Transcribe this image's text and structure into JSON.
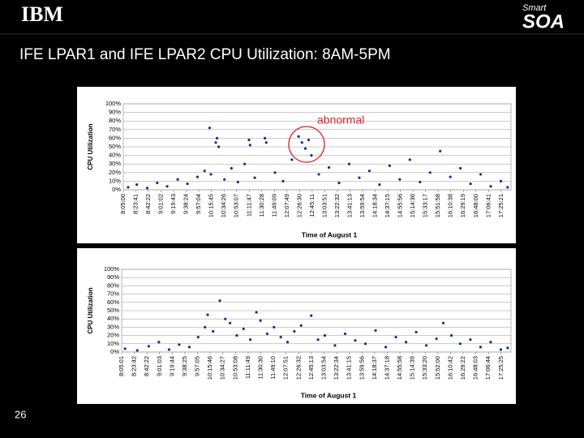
{
  "header": {
    "logo": "IBM",
    "brand_prefix": "Smart",
    "brand": "SOA"
  },
  "title": "IFE LPAR1 and IFE LPAR2 CPU Utilization: 8AM-5PM",
  "page_number": "26",
  "chart_data": [
    {
      "type": "scatter",
      "ylabel": "CPU Utilization",
      "xlabel": "Time of August 1",
      "annotation": "abnormal",
      "xlim": [
        "8:05:00",
        "17:40:00"
      ],
      "xticks": [
        "8:05:00",
        "8:23:41",
        "8:42:22",
        "9:01:02",
        "9:19:43",
        "9:38:24",
        "9:57:04",
        "10:15:45",
        "10:34:26",
        "10:53:07",
        "11:11:47",
        "11:30:28",
        "11:49:09",
        "12:07:49",
        "12:26:30",
        "12:45:11",
        "13:03:51",
        "13:22:32",
        "13:41:13",
        "13:59:54",
        "14:18:34",
        "14:37:15",
        "14:55:56",
        "15:14:36",
        "15:33:17",
        "15:51:58",
        "16:10:38",
        "16:29:19",
        "16:48:00",
        "17:06:41",
        "17:25:21"
      ],
      "ylim": [
        0,
        100
      ],
      "yticks": [
        {
          "value": 0,
          "label": "0%"
        },
        {
          "value": 10,
          "label": "10%"
        },
        {
          "value": 20,
          "label": "20%"
        },
        {
          "value": 30,
          "label": "30%"
        },
        {
          "value": 40,
          "label": "40%"
        },
        {
          "value": 50,
          "label": "50%"
        },
        {
          "value": 60,
          "label": "60%"
        },
        {
          "value": 70,
          "label": "70%"
        },
        {
          "value": 80,
          "label": "80%"
        },
        {
          "value": 90,
          "label": "90%"
        },
        {
          "value": 100,
          "label": "100%"
        }
      ],
      "grid": true,
      "series": [
        {
          "color": "#1c2a9c",
          "x": [
            "8:12:10",
            "8:25:00",
            "8:40:30",
            "8:55:20",
            "9:10:00",
            "9:25:40",
            "9:40:10",
            "9:55:00",
            "10:05:30",
            "10:13:00",
            "10:15:00",
            "10:22:10",
            "10:24:00",
            "10:26:30",
            "10:35:00",
            "10:45:20",
            "10:55:00",
            "11:05:00",
            "11:11:30",
            "11:13:00",
            "11:20:00",
            "11:35:00",
            "11:37:00",
            "11:50:00",
            "12:02:00",
            "12:15:00",
            "12:25:00",
            "12:30:00",
            "12:35:00",
            "12:40:00",
            "12:44:00",
            "12:55:00",
            "13:10:00",
            "13:25:00",
            "13:40:00",
            "13:55:00",
            "14:10:00",
            "14:25:00",
            "14:40:00",
            "14:55:00",
            "15:10:00",
            "15:25:00",
            "15:40:00",
            "15:55:00",
            "16:10:00",
            "16:25:00",
            "16:40:00",
            "16:55:00",
            "17:10:00",
            "17:25:00",
            "17:35:00"
          ],
          "values": [
            3,
            6,
            2,
            8,
            4,
            12,
            7,
            15,
            22,
            72,
            18,
            55,
            60,
            50,
            12,
            25,
            9,
            30,
            58,
            52,
            14,
            60,
            55,
            20,
            10,
            35,
            62,
            55,
            48,
            58,
            40,
            18,
            26,
            8,
            30,
            14,
            22,
            6,
            28,
            12,
            35,
            9,
            20,
            45,
            15,
            25,
            7,
            18,
            4,
            10,
            3
          ]
        }
      ]
    },
    {
      "type": "scatter",
      "ylabel": "CPU Utilization",
      "xlabel": "Time of August 1",
      "xlim": [
        "8:05:01",
        "17:40:00"
      ],
      "xticks": [
        "8:05:01",
        "8:23:42",
        "8:42:22",
        "9:01:03",
        "9:19:44",
        "9:38:25",
        "9:57:05",
        "10:15:46",
        "10:34:27",
        "10:53:08",
        "11:11:49",
        "11:30:30",
        "11:49:10",
        "12:07:51",
        "12:26:32",
        "12:45:13",
        "13:03:54",
        "13:22:34",
        "13:41:15",
        "13:59:56",
        "14:18:37",
        "14:37:18",
        "14:55:58",
        "15:14:39",
        "15:33:20",
        "15:52:00",
        "16:10:42",
        "16:29:22",
        "16:48:03",
        "17:06:44",
        "17:25:25"
      ],
      "ylim": [
        0,
        100
      ],
      "yticks": [
        {
          "value": 0,
          "label": "0%"
        },
        {
          "value": 10,
          "label": "10%"
        },
        {
          "value": 20,
          "label": "20%"
        },
        {
          "value": 30,
          "label": "30%"
        },
        {
          "value": 40,
          "label": "40%"
        },
        {
          "value": 50,
          "label": "50%"
        },
        {
          "value": 60,
          "label": "60%"
        },
        {
          "value": 70,
          "label": "70%"
        },
        {
          "value": 80,
          "label": "80%"
        },
        {
          "value": 90,
          "label": "90%"
        },
        {
          "value": 100,
          "label": "100%"
        }
      ],
      "grid": true,
      "series": [
        {
          "color": "#1c2a9c",
          "x": [
            "8:10:00",
            "8:28:00",
            "8:45:00",
            "9:00:00",
            "9:15:00",
            "9:30:00",
            "9:45:00",
            "9:58:00",
            "10:08:00",
            "10:12:00",
            "10:20:00",
            "10:30:00",
            "10:38:00",
            "10:45:00",
            "10:55:00",
            "11:05:00",
            "11:15:00",
            "11:24:00",
            "11:30:00",
            "11:40:00",
            "11:50:00",
            "12:00:00",
            "12:10:00",
            "12:20:00",
            "12:30:00",
            "12:45:00",
            "12:55:00",
            "13:05:00",
            "13:20:00",
            "13:35:00",
            "13:50:00",
            "14:05:00",
            "14:20:00",
            "14:35:00",
            "14:50:00",
            "15:05:00",
            "15:20:00",
            "15:35:00",
            "15:50:00",
            "16:00:00",
            "16:12:00",
            "16:25:00",
            "16:40:00",
            "16:55:00",
            "17:10:00",
            "17:25:00",
            "17:35:00"
          ],
          "values": [
            4,
            2,
            7,
            12,
            3,
            9,
            6,
            18,
            30,
            45,
            25,
            62,
            40,
            35,
            20,
            28,
            15,
            48,
            38,
            22,
            30,
            18,
            12,
            25,
            32,
            44,
            15,
            20,
            8,
            22,
            14,
            10,
            26,
            6,
            18,
            12,
            24,
            8,
            16,
            35,
            20,
            10,
            15,
            6,
            12,
            3,
            5
          ]
        }
      ]
    }
  ]
}
